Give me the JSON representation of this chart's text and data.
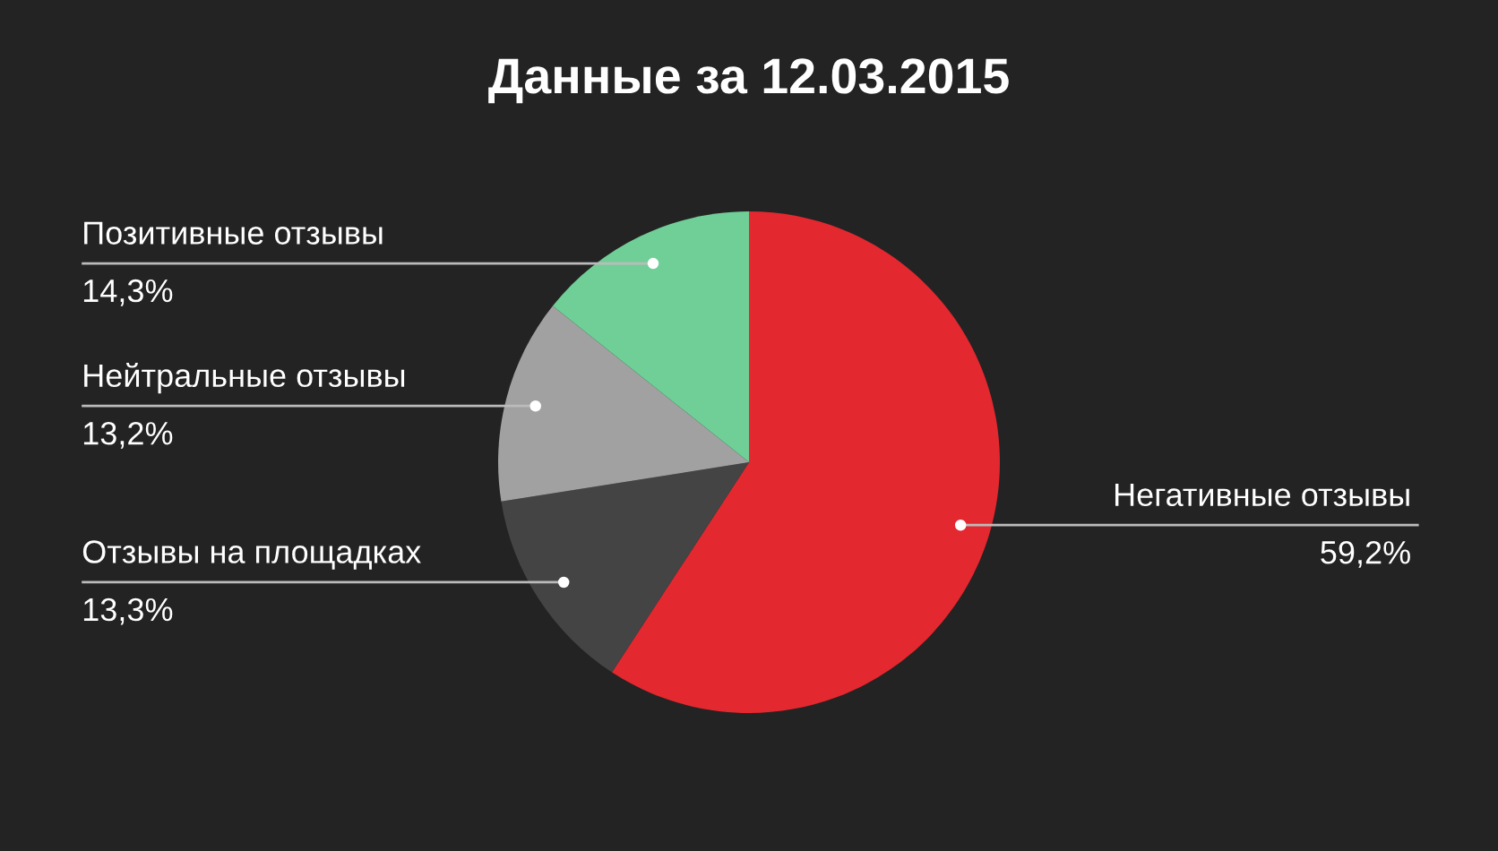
{
  "chart_data": {
    "type": "pie",
    "title": "Данные за 12.03.2015",
    "categories": [
      "Негативные отзывы",
      "Отзывы на площадках",
      "Нейтральные отзывы",
      "Позитивные отзывы"
    ],
    "values": [
      59.2,
      13.3,
      13.2,
      14.3
    ],
    "value_labels": [
      "59,2%",
      "13,3%",
      "13,2%",
      "14,3%"
    ],
    "colors": [
      "#e3282f",
      "#444444",
      "#a1a1a1",
      "#6fcf97"
    ],
    "legend": false
  }
}
